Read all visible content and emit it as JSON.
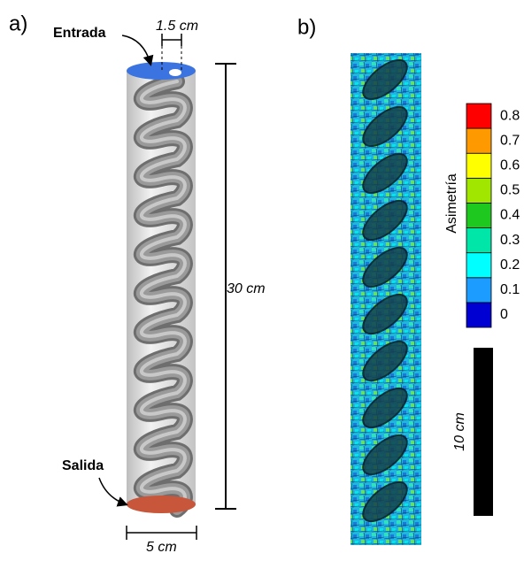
{
  "panel_a": {
    "label": "a)",
    "inlet": "Entrada",
    "outlet": "Salida",
    "inlet_diameter": "1.5 cm",
    "height": "30 cm",
    "diameter": "5 cm"
  },
  "panel_b": {
    "label": "b)",
    "colorbar": {
      "title": "Asimetría",
      "ticks": [
        0,
        0.1,
        0.2,
        0.3,
        0.4,
        0.5,
        0.6,
        0.7,
        0.8
      ],
      "colors": [
        "#0000d2",
        "#1c9cff",
        "#00ffff",
        "#00e6a8",
        "#1ec81e",
        "#a0e600",
        "#ffff00",
        "#ff9900",
        "#ff0000"
      ]
    },
    "scale_bar": "10 cm"
  }
}
